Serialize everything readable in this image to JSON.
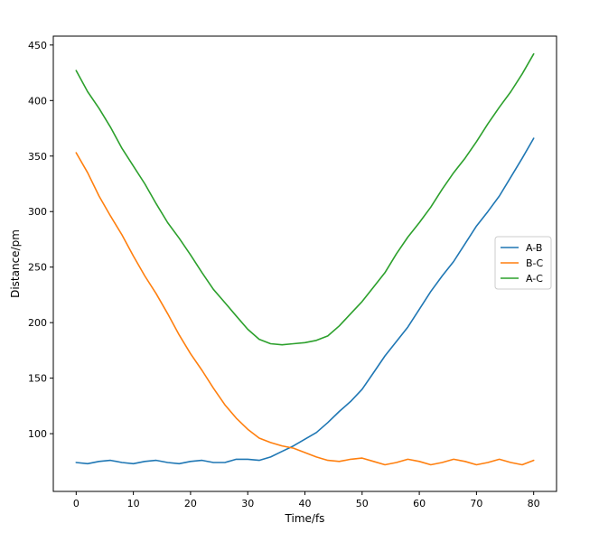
{
  "chart_data": {
    "type": "line",
    "xlabel": "Time/fs",
    "ylabel": "Distance/pm",
    "xlim": [
      -4,
      84
    ],
    "ylim": [
      48,
      458
    ],
    "xticks": [
      0,
      10,
      20,
      30,
      40,
      50,
      60,
      70,
      80
    ],
    "yticks": [
      100,
      150,
      200,
      250,
      300,
      350,
      400,
      450
    ],
    "grid": false,
    "legend_position": "center-right",
    "series": [
      {
        "name": "A-B",
        "color": "#1f77b4",
        "points": [
          [
            0,
            74
          ],
          [
            2,
            73
          ],
          [
            4,
            75
          ],
          [
            6,
            76
          ],
          [
            8,
            74
          ],
          [
            10,
            73
          ],
          [
            12,
            75
          ],
          [
            14,
            76
          ],
          [
            16,
            74
          ],
          [
            18,
            73
          ],
          [
            20,
            75
          ],
          [
            22,
            76
          ],
          [
            24,
            74
          ],
          [
            26,
            74
          ],
          [
            28,
            77
          ],
          [
            30,
            77
          ],
          [
            32,
            76
          ],
          [
            34,
            79
          ],
          [
            36,
            84
          ],
          [
            38,
            89
          ],
          [
            40,
            95
          ],
          [
            42,
            101
          ],
          [
            44,
            110
          ],
          [
            46,
            120
          ],
          [
            48,
            129
          ],
          [
            50,
            140
          ],
          [
            52,
            155
          ],
          [
            54,
            170
          ],
          [
            56,
            183
          ],
          [
            58,
            196
          ],
          [
            60,
            212
          ],
          [
            62,
            228
          ],
          [
            64,
            242
          ],
          [
            66,
            255
          ],
          [
            68,
            271
          ],
          [
            70,
            287
          ],
          [
            72,
            300
          ],
          [
            74,
            314
          ],
          [
            76,
            331
          ],
          [
            78,
            348
          ],
          [
            80,
            366
          ]
        ]
      },
      {
        "name": "B-C",
        "color": "#ff7f0e",
        "points": [
          [
            0,
            353
          ],
          [
            2,
            335
          ],
          [
            4,
            314
          ],
          [
            6,
            296
          ],
          [
            8,
            279
          ],
          [
            10,
            260
          ],
          [
            12,
            242
          ],
          [
            14,
            226
          ],
          [
            16,
            208
          ],
          [
            18,
            189
          ],
          [
            20,
            172
          ],
          [
            22,
            157
          ],
          [
            24,
            141
          ],
          [
            26,
            126
          ],
          [
            28,
            114
          ],
          [
            30,
            104
          ],
          [
            32,
            96
          ],
          [
            34,
            92
          ],
          [
            36,
            89
          ],
          [
            38,
            87
          ],
          [
            40,
            83
          ],
          [
            42,
            79
          ],
          [
            44,
            76
          ],
          [
            46,
            75
          ],
          [
            48,
            77
          ],
          [
            50,
            78
          ],
          [
            52,
            75
          ],
          [
            54,
            72
          ],
          [
            56,
            74
          ],
          [
            58,
            77
          ],
          [
            60,
            75
          ],
          [
            62,
            72
          ],
          [
            64,
            74
          ],
          [
            66,
            77
          ],
          [
            68,
            75
          ],
          [
            70,
            72
          ],
          [
            72,
            74
          ],
          [
            74,
            77
          ],
          [
            76,
            74
          ],
          [
            78,
            72
          ],
          [
            80,
            76
          ]
        ]
      },
      {
        "name": "A-C",
        "color": "#2ca02c",
        "points": [
          [
            0,
            427
          ],
          [
            2,
            408
          ],
          [
            4,
            393
          ],
          [
            6,
            376
          ],
          [
            8,
            357
          ],
          [
            10,
            341
          ],
          [
            12,
            325
          ],
          [
            14,
            307
          ],
          [
            16,
            290
          ],
          [
            18,
            276
          ],
          [
            20,
            261
          ],
          [
            22,
            245
          ],
          [
            24,
            230
          ],
          [
            26,
            218
          ],
          [
            28,
            206
          ],
          [
            30,
            194
          ],
          [
            32,
            185
          ],
          [
            34,
            181
          ],
          [
            36,
            180
          ],
          [
            38,
            181
          ],
          [
            40,
            182
          ],
          [
            42,
            184
          ],
          [
            44,
            188
          ],
          [
            46,
            197
          ],
          [
            48,
            208
          ],
          [
            50,
            219
          ],
          [
            52,
            232
          ],
          [
            54,
            245
          ],
          [
            56,
            262
          ],
          [
            58,
            277
          ],
          [
            60,
            290
          ],
          [
            62,
            304
          ],
          [
            64,
            320
          ],
          [
            66,
            335
          ],
          [
            68,
            348
          ],
          [
            70,
            363
          ],
          [
            72,
            379
          ],
          [
            74,
            394
          ],
          [
            76,
            408
          ],
          [
            78,
            424
          ],
          [
            80,
            442
          ]
        ]
      }
    ]
  }
}
